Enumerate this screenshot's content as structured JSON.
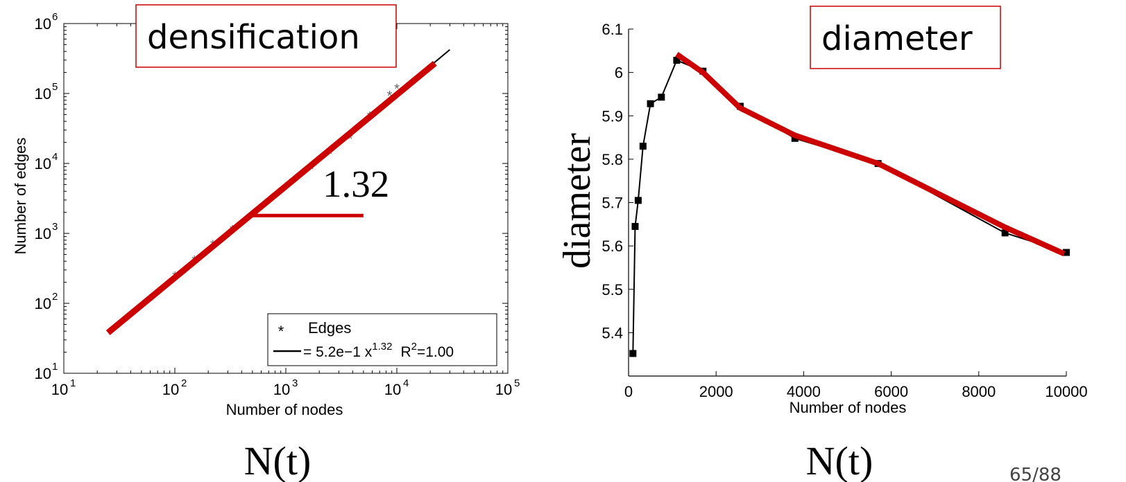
{
  "colors": {
    "highlight": "#cc0000",
    "ink": "#000000",
    "marker_gray": "#666666"
  },
  "page_number": "65/88",
  "chart_data": [
    {
      "type": "scatter",
      "annotation": "densification",
      "slope_label": "1.32",
      "xlabel": "Number of nodes",
      "ylabel": "Number of edges",
      "below_axis_label": "N(t)",
      "x_scale": "log",
      "y_scale": "log",
      "xlim": [
        10,
        100000
      ],
      "ylim": [
        10,
        1000000
      ],
      "x_ticks": [
        {
          "base": "10",
          "exp": "1",
          "value": 10
        },
        {
          "base": "10",
          "exp": "2",
          "value": 100
        },
        {
          "base": "10",
          "exp": "3",
          "value": 1000
        },
        {
          "base": "10",
          "exp": "4",
          "value": 10000
        },
        {
          "base": "10",
          "exp": "5",
          "value": 100000
        }
      ],
      "y_ticks": [
        {
          "base": "10",
          "exp": "1",
          "value": 10
        },
        {
          "base": "10",
          "exp": "2",
          "value": 100
        },
        {
          "base": "10",
          "exp": "3",
          "value": 1000
        },
        {
          "base": "10",
          "exp": "4",
          "value": 10000
        },
        {
          "base": "10",
          "exp": "5",
          "value": 100000
        },
        {
          "base": "10",
          "exp": "6",
          "value": 1000000
        }
      ],
      "series": [
        {
          "name": "Edges",
          "marker": "star",
          "points": [
            [
              100,
              250
            ],
            [
              150,
              420
            ],
            [
              220,
              700
            ],
            [
              330,
              1150
            ],
            [
              500,
              1850
            ],
            [
              750,
              3200
            ],
            [
              1100,
              5000
            ],
            [
              1700,
              8500
            ],
            [
              2500,
              14000
            ],
            [
              3800,
              23000
            ],
            [
              5700,
              48000
            ],
            [
              8600,
              95000
            ],
            [
              10000,
              120000
            ]
          ]
        }
      ],
      "fit_line": {
        "x_range": [
          30,
          30000
        ],
        "coef": 0.52,
        "exponent": 1.32
      },
      "legend": {
        "entries": [
          {
            "symbol": "*",
            "label": "Edges"
          },
          {
            "prefix": "= 5.2e−1 x",
            "exp": "1.32",
            "r_label": "R",
            "r_exp": "2",
            "r_value": "=1.00"
          }
        ]
      },
      "red_fit": {
        "x_range": [
          25,
          22000
        ],
        "y_range": [
          38,
          270000
        ]
      },
      "red_baseline": {
        "x_range": [
          500,
          5000
        ],
        "y_value": 1800
      }
    },
    {
      "type": "line",
      "annotation": "diameter",
      "xlabel": "Number of nodes",
      "ylabel": "diameter",
      "below_axis_label": "N(t)",
      "xlim": [
        0,
        10000
      ],
      "ylim": [
        5.3,
        6.1
      ],
      "x_ticks": [
        "0",
        "2000",
        "4000",
        "6000",
        "8000",
        "10000"
      ],
      "y_ticks": [
        "5.4",
        "5.5",
        "5.6",
        "5.7",
        "5.8",
        "5.9",
        "6",
        "6.1"
      ],
      "x": [
        100,
        150,
        220,
        330,
        500,
        750,
        1100,
        1700,
        2550,
        3800,
        5700,
        8600,
        10000
      ],
      "y": [
        5.352,
        5.645,
        5.705,
        5.83,
        5.928,
        5.943,
        6.028,
        6.003,
        5.922,
        5.848,
        5.79,
        5.63,
        5.585
      ],
      "red_trend": {
        "x": [
          1100,
          1700,
          2550,
          3800,
          5700,
          8600,
          9950
        ],
        "y": [
          6.042,
          6.0,
          5.918,
          5.855,
          5.79,
          5.643,
          5.582
        ]
      }
    }
  ]
}
